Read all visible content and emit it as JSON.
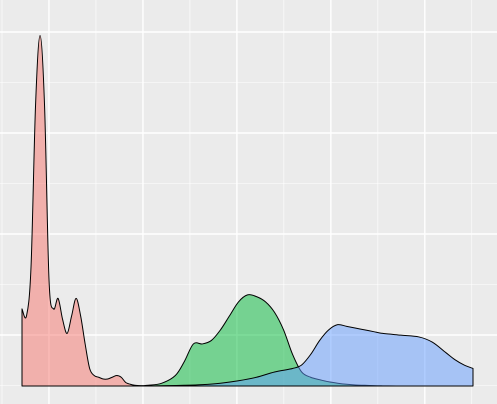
{
  "chart_data": {
    "type": "area",
    "xlim": [
      0,
      100
    ],
    "ylim": [
      0,
      1.05
    ],
    "grid": true,
    "legend": "none",
    "panel_color": "#ebebeb",
    "grid_color": "#ffffff",
    "series": [
      {
        "color": "#f8766d",
        "opacity": 0.5,
        "x": [
          0,
          1,
          2,
          3,
          4,
          5,
          6,
          7,
          8,
          9,
          10,
          11,
          12,
          13,
          14,
          15,
          16,
          17,
          18,
          19,
          20,
          21,
          22,
          23,
          24,
          25,
          26,
          27
        ],
        "y": [
          0.22,
          0.2,
          0.34,
          0.8,
          1.0,
          0.8,
          0.3,
          0.22,
          0.25,
          0.19,
          0.15,
          0.2,
          0.25,
          0.2,
          0.12,
          0.05,
          0.03,
          0.025,
          0.02,
          0.02,
          0.025,
          0.03,
          0.025,
          0.01,
          0.005,
          0.002,
          0.001,
          0
        ]
      },
      {
        "color": "#00ba38",
        "opacity": 0.5,
        "x": [
          25,
          28,
          31,
          34,
          36,
          38,
          40,
          42,
          44,
          46,
          48,
          50,
          52,
          54,
          56,
          58,
          60,
          62,
          64,
          66,
          68,
          70,
          72,
          74,
          76,
          78,
          80,
          83
        ],
        "y": [
          0,
          0.002,
          0.008,
          0.03,
          0.07,
          0.12,
          0.12,
          0.13,
          0.16,
          0.2,
          0.24,
          0.26,
          0.255,
          0.24,
          0.21,
          0.16,
          0.09,
          0.04,
          0.025,
          0.018,
          0.012,
          0.008,
          0.005,
          0.003,
          0.002,
          0.001,
          0.0005,
          0
        ]
      },
      {
        "color": "#619cff",
        "opacity": 0.5,
        "x": [
          28,
          32,
          36,
          40,
          44,
          48,
          52,
          56,
          60,
          62,
          64,
          66,
          68,
          70,
          72,
          74,
          76,
          78,
          80,
          84,
          88,
          91,
          94,
          96,
          98,
          100
        ],
        "y": [
          0,
          0.001,
          0.002,
          0.004,
          0.008,
          0.015,
          0.025,
          0.04,
          0.05,
          0.06,
          0.09,
          0.13,
          0.16,
          0.175,
          0.17,
          0.165,
          0.16,
          0.155,
          0.15,
          0.145,
          0.14,
          0.125,
          0.095,
          0.075,
          0.06,
          0.05
        ]
      }
    ]
  }
}
